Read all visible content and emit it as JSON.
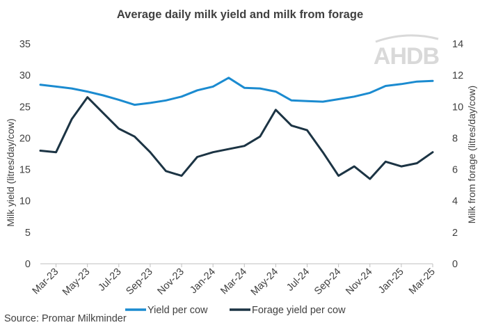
{
  "chart_data": {
    "type": "line",
    "title": "Average daily milk yield and milk from forage",
    "ylabel_left": "Milk yield (litres/day/cow)",
    "ylabel_right": "Milk from forage (litres/day/cow)",
    "ylim_left": [
      0,
      35
    ],
    "yticks_left": [
      "0",
      "5",
      "10",
      "15",
      "20",
      "25",
      "30",
      "35"
    ],
    "ylim_right": [
      0,
      14
    ],
    "yticks_right": [
      "0",
      "2",
      "4",
      "6",
      "8",
      "10",
      "12",
      "14"
    ],
    "x": [
      "Feb-23",
      "Mar-23",
      "Apr-23",
      "May-23",
      "Jun-23",
      "Jul-23",
      "Aug-23",
      "Sep-23",
      "Oct-23",
      "Nov-23",
      "Dec-23",
      "Jan-24",
      "Feb-24",
      "Mar-24",
      "Apr-24",
      "May-24",
      "Jun-24",
      "Jul-24",
      "Aug-24",
      "Sep-24",
      "Oct-24",
      "Nov-24",
      "Dec-24",
      "Jan-25",
      "Feb-25",
      "Mar-25"
    ],
    "x_tick_labels": [
      "Mar-23",
      "May-23",
      "Jul-23",
      "Sep-23",
      "Nov-23",
      "Jan-24",
      "Mar-24",
      "May-24",
      "Jul-24",
      "Sep-24",
      "Nov-24",
      "Jan-25",
      "Mar-25"
    ],
    "series": [
      {
        "name": "Yield per cow",
        "axis": "left",
        "color": "#1b8bd0",
        "values": [
          28.5,
          28.2,
          27.9,
          27.4,
          26.8,
          26.1,
          25.3,
          25.6,
          26.0,
          26.6,
          27.6,
          28.2,
          29.6,
          28.0,
          27.9,
          27.4,
          26.0,
          25.9,
          25.8,
          26.2,
          26.6,
          27.2,
          28.3,
          28.6,
          29.0,
          29.1
        ]
      },
      {
        "name": "Forage yield per cow",
        "axis": "right",
        "color": "#1c3444",
        "values": [
          7.2,
          7.1,
          9.2,
          10.6,
          9.6,
          8.6,
          8.1,
          7.1,
          5.9,
          5.6,
          6.8,
          7.1,
          7.3,
          7.5,
          8.1,
          9.8,
          8.8,
          8.5,
          7.1,
          5.6,
          6.2,
          5.4,
          6.5,
          6.2,
          6.4,
          7.1
        ]
      }
    ],
    "legend_position": "bottom",
    "grid": false
  },
  "source": "Source: Promar Milkminder",
  "logo_text": "AHDB"
}
